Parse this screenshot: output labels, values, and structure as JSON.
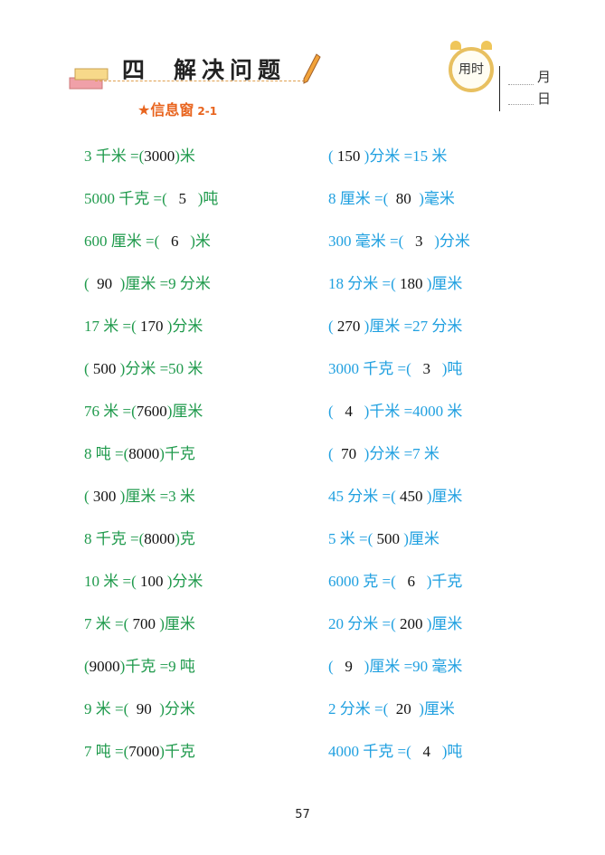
{
  "header": {
    "unit_number": "四",
    "title": "解决问题",
    "info_window": "信息窗",
    "info_sub": "2-1",
    "clock_label": "用时",
    "month_label": "月",
    "day_label": "日"
  },
  "left": [
    {
      "pre": "3 千米 =(",
      "ans": "3000",
      "post": ")米"
    },
    {
      "pre": "5000 千克 =(",
      "ans": "5",
      "post": ")吨"
    },
    {
      "pre": "600 厘米 =(",
      "ans": "6",
      "post": ")米"
    },
    {
      "pre": "(",
      "ans": "90",
      "post": ")厘米 =9 分米"
    },
    {
      "pre": "17 米 =(",
      "ans": "170",
      "post": ")分米"
    },
    {
      "pre": "(",
      "ans": "500",
      "post": ")分米 =50 米"
    },
    {
      "pre": "76 米 =(",
      "ans": "7600",
      "post": ")厘米"
    },
    {
      "pre": "8 吨 =(",
      "ans": "8000",
      "post": ")千克"
    },
    {
      "pre": "(",
      "ans": "300",
      "post": ")厘米 =3 米"
    },
    {
      "pre": "8 千克 =(",
      "ans": "8000",
      "post": ")克"
    },
    {
      "pre": "10 米 =(",
      "ans": "100",
      "post": ")分米"
    },
    {
      "pre": "7 米 =(",
      "ans": "700",
      "post": ")厘米"
    },
    {
      "pre": "(",
      "ans": "9000",
      "post": ")千克 =9 吨"
    },
    {
      "pre": "9 米 =(",
      "ans": "90",
      "post": ")分米"
    },
    {
      "pre": "7 吨 =(",
      "ans": "7000",
      "post": ")千克"
    }
  ],
  "right": [
    {
      "pre": "(",
      "ans": "150",
      "post": ")分米 =15 米"
    },
    {
      "pre": "8 厘米 =(",
      "ans": "80",
      "post": ")毫米"
    },
    {
      "pre": "300 毫米 =(",
      "ans": "3",
      "post": ")分米"
    },
    {
      "pre": "18 分米 =(",
      "ans": "180",
      "post": ")厘米"
    },
    {
      "pre": "(",
      "ans": "270",
      "post": ")厘米 =27 分米"
    },
    {
      "pre": "3000 千克 =(",
      "ans": "3",
      "post": ")吨"
    },
    {
      "pre": "(",
      "ans": "4",
      "post": ")千米 =4000 米"
    },
    {
      "pre": "(",
      "ans": "70",
      "post": ")分米 =7 米"
    },
    {
      "pre": "45 分米 =(",
      "ans": "450",
      "post": ")厘米"
    },
    {
      "pre": "5 米 =(",
      "ans": "500",
      "post": ")厘米"
    },
    {
      "pre": "6000 克 =(",
      "ans": "6",
      "post": ")千克"
    },
    {
      "pre": "20 分米 =(",
      "ans": "200",
      "post": ")厘米"
    },
    {
      "pre": "(",
      "ans": "9",
      "post": ")厘米 =90 毫米"
    },
    {
      "pre": "2 分米 =(",
      "ans": "20",
      "post": ")厘米"
    },
    {
      "pre": "4000 千克 =(",
      "ans": "4",
      "post": ")吨"
    }
  ],
  "page_number": "57",
  "colors": {
    "left_text": "#1f9a4c",
    "right_text": "#20a0e0",
    "answer": "#111111",
    "accent": "#e8641e"
  }
}
